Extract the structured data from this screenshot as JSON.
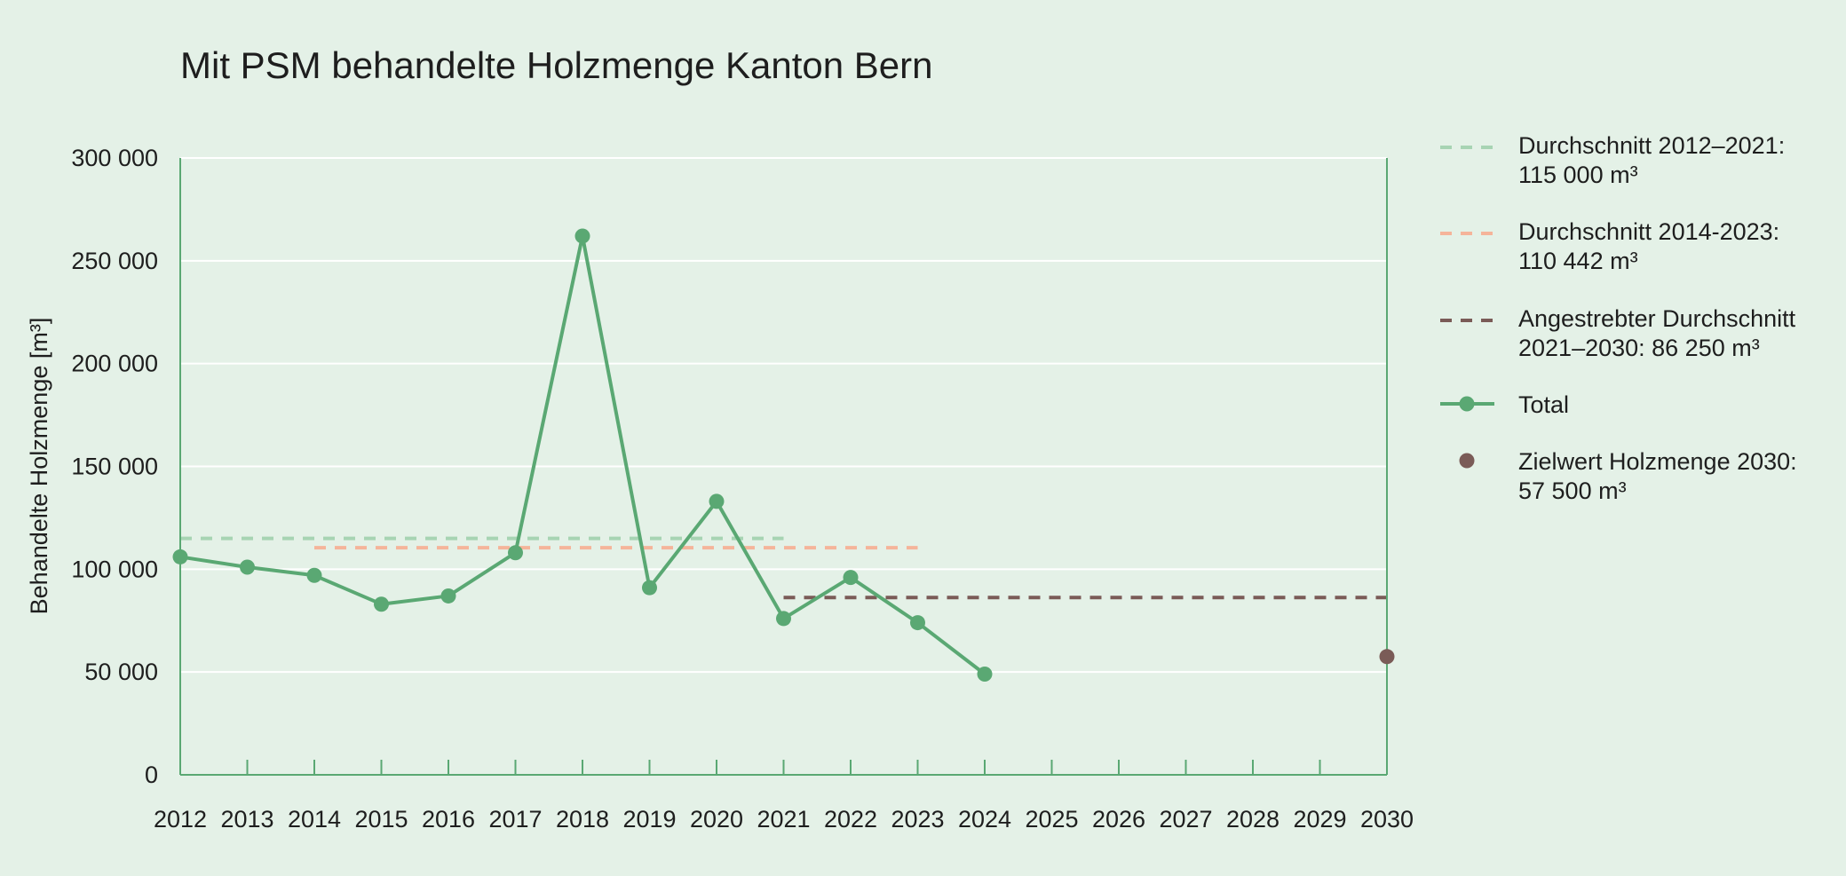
{
  "chart_data": {
    "type": "line",
    "title": "Mit PSM behandelte Holzmenge Kanton Bern",
    "xlabel": "",
    "ylabel": "Behandelte Holzmenge [m³]",
    "ylim": [
      0,
      300000
    ],
    "grid": true,
    "legend_position": "right",
    "x": [
      "2012",
      "2013",
      "2014",
      "2015",
      "2016",
      "2017",
      "2018",
      "2019",
      "2020",
      "2021",
      "2022",
      "2023",
      "2024",
      "2025",
      "2026",
      "2027",
      "2028",
      "2029",
      "2030"
    ],
    "y_ticks": [
      0,
      50000,
      100000,
      150000,
      200000,
      250000,
      300000
    ],
    "y_tick_labels": [
      "0",
      "50 000",
      "100 000",
      "150 000",
      "200 000",
      "250 000",
      "300 000"
    ],
    "series": [
      {
        "name": "Total",
        "style": "line-marker",
        "color": "#5aa873",
        "x": [
          "2012",
          "2013",
          "2014",
          "2015",
          "2016",
          "2017",
          "2018",
          "2019",
          "2020",
          "2021",
          "2022",
          "2023",
          "2024"
        ],
        "values": [
          106000,
          101000,
          97000,
          83000,
          87000,
          108000,
          262000,
          91000,
          133000,
          76000,
          96000,
          74000,
          49000
        ]
      }
    ],
    "reference_lines": [
      {
        "name": "Durchschnitt 2012–2021: 115 000 m³",
        "legend_lines": [
          "Durchschnitt 2012–2021:",
          "115 000 m³"
        ],
        "value": 115000,
        "x_start": "2012",
        "x_end": "2021",
        "color": "#a7d4b3"
      },
      {
        "name": "Durchschnitt 2014-2023: 110 442 m³",
        "legend_lines": [
          "Durchschnitt 2014-2023:",
          "110 442 m³"
        ],
        "value": 110442,
        "x_start": "2014",
        "x_end": "2023",
        "color": "#f5b49a"
      },
      {
        "name": "Angestrebter Durchschnitt 2021–2030: 86 250 m³",
        "legend_lines": [
          "Angestrebter Durchschnitt",
          "2021–2030: 86 250 m³"
        ],
        "value": 86250,
        "x_start": "2021",
        "x_end": "2030",
        "color": "#7a5b57"
      }
    ],
    "target_points": [
      {
        "name": "Zielwert Holzmenge 2030: 57 500 m³",
        "legend_lines": [
          "Zielwert Holzmenge 2030:",
          "57 500 m³"
        ],
        "x": "2030",
        "value": 57500,
        "color": "#7a5b57"
      }
    ],
    "legend": [
      {
        "kind": "dashed",
        "color": "#a7d4b3",
        "lines": [
          "Durchschnitt 2012–2021:",
          "115 000 m³"
        ]
      },
      {
        "kind": "dashed",
        "color": "#f5b49a",
        "lines": [
          "Durchschnitt 2014-2023:",
          "110 442 m³"
        ]
      },
      {
        "kind": "dashed",
        "color": "#7a5b57",
        "lines": [
          "Angestrebter Durchschnitt",
          "2021–2030: 86 250 m³"
        ]
      },
      {
        "kind": "line-marker",
        "color": "#5aa873",
        "lines": [
          "Total"
        ]
      },
      {
        "kind": "dot",
        "color": "#7a5b57",
        "lines": [
          "Zielwert Holzmenge 2030:",
          "57 500 m³"
        ]
      }
    ],
    "colors": {
      "axis": "#5aa873",
      "grid": "#ffffff",
      "background": "#e4f1e7"
    }
  }
}
